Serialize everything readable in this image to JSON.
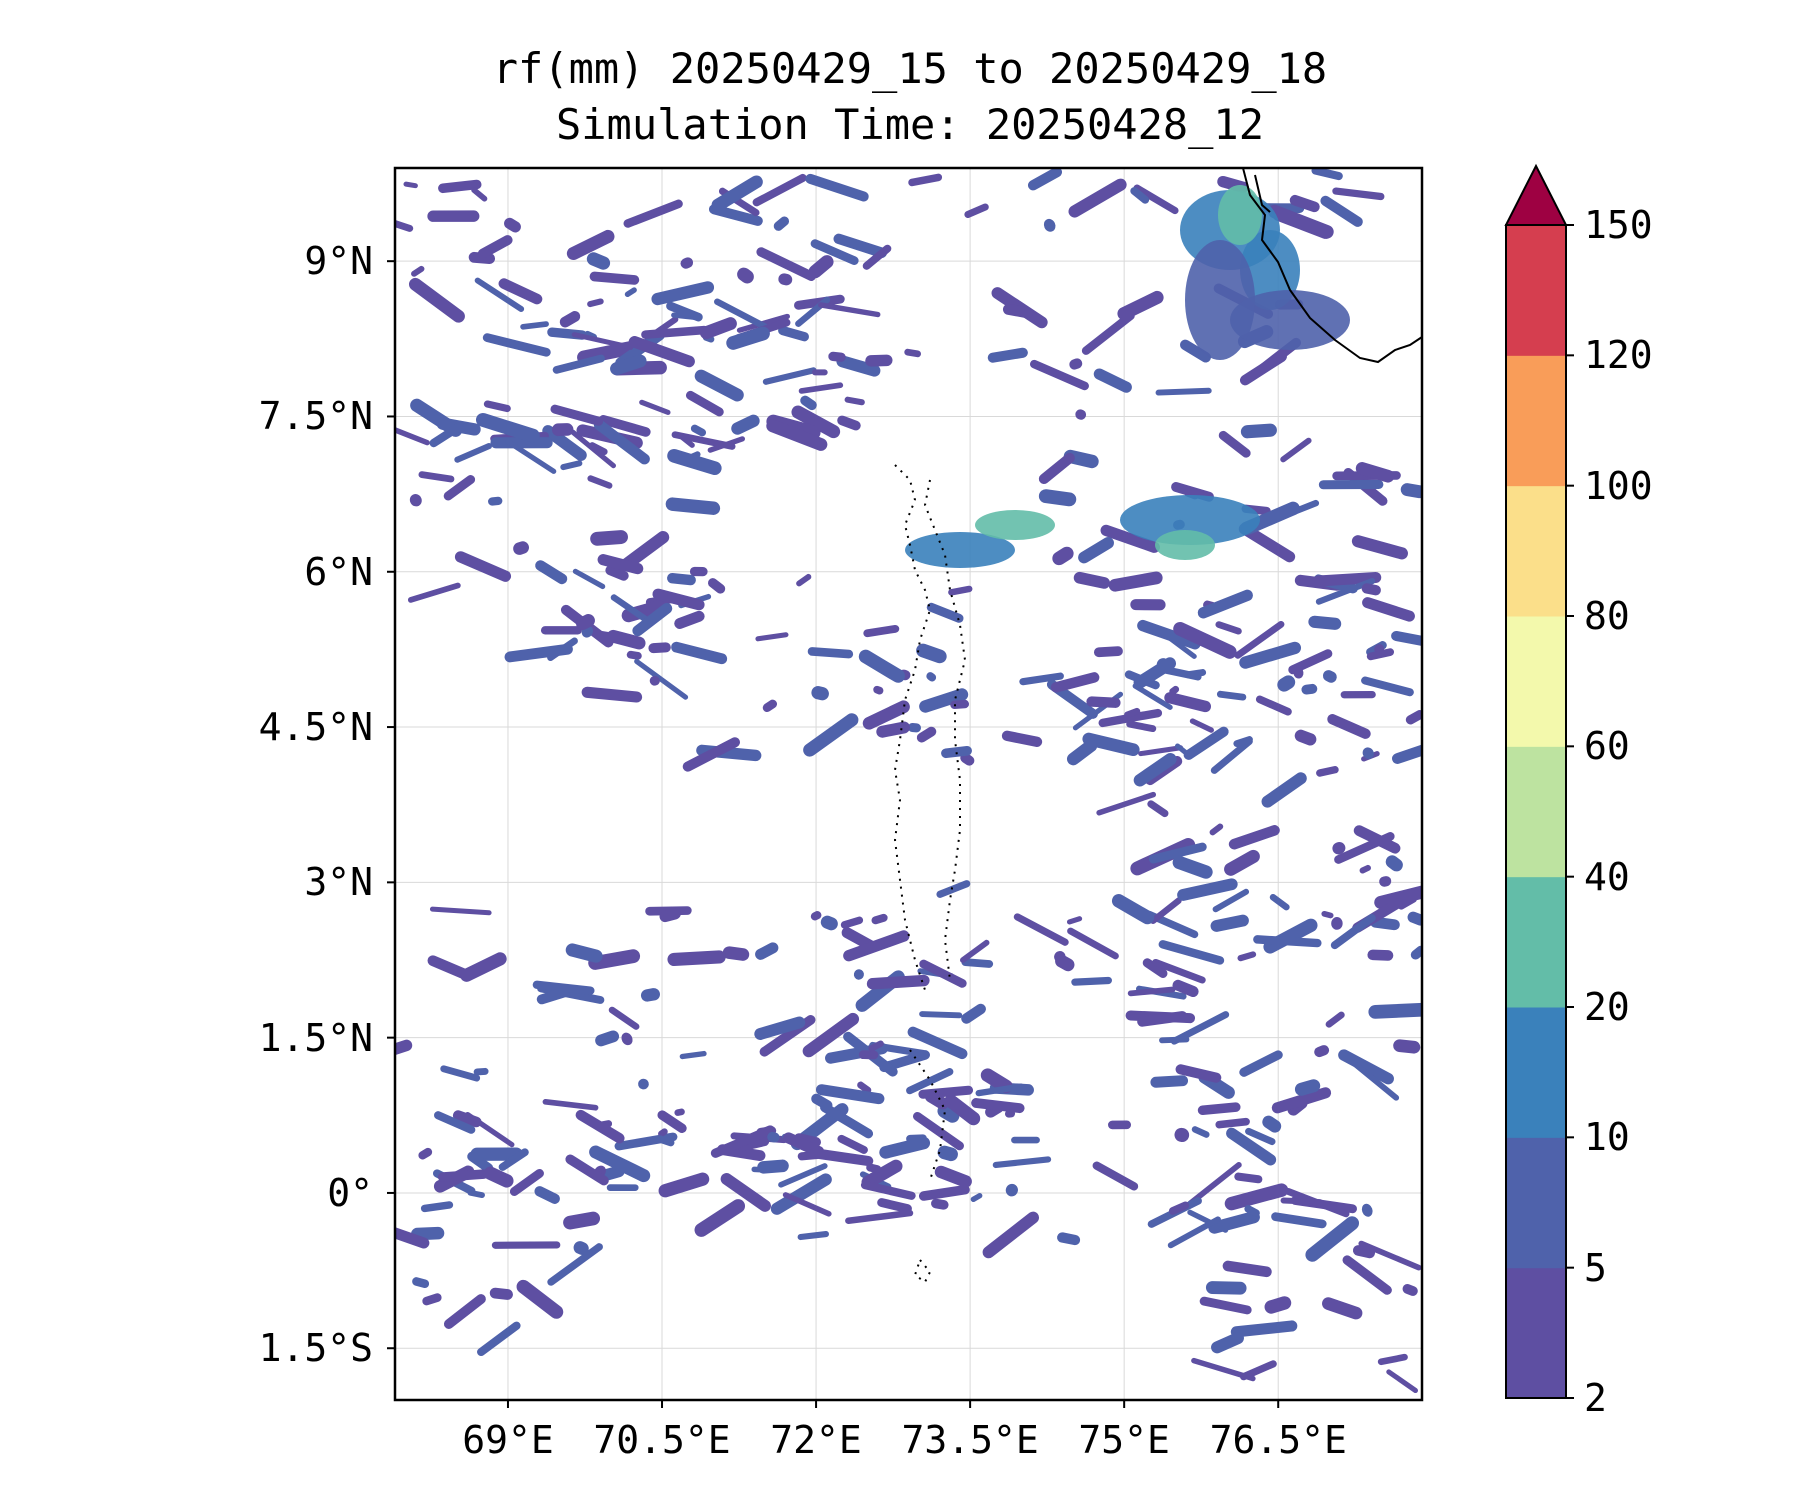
{
  "title": {
    "line1": "rf(mm) 20250429_15 to 20250429_18",
    "line2": "Simulation Time: 20250428_12"
  },
  "map": {
    "lon_range": [
      67.9,
      77.9
    ],
    "lat_range": [
      -2.0,
      9.9
    ],
    "gridlines": true,
    "lat_ticks": [
      {
        "value": 9,
        "label": "9°N"
      },
      {
        "value": 7.5,
        "label": "7.5°N"
      },
      {
        "value": 6,
        "label": "6°N"
      },
      {
        "value": 4.5,
        "label": "4.5°N"
      },
      {
        "value": 3,
        "label": "3°N"
      },
      {
        "value": 1.5,
        "label": "1.5°N"
      },
      {
        "value": 0,
        "label": "0°"
      },
      {
        "value": -1.5,
        "label": "1.5°S"
      }
    ],
    "lon_ticks": [
      {
        "value": 69,
        "label": "69°E"
      },
      {
        "value": 70.5,
        "label": "70.5°E"
      },
      {
        "value": 72,
        "label": "72°E"
      },
      {
        "value": 73.5,
        "label": "73.5°E"
      },
      {
        "value": 75,
        "label": "75°E"
      },
      {
        "value": 76.5,
        "label": "76.5°E"
      }
    ]
  },
  "colorbar": {
    "levels": [
      "2",
      "5",
      "10",
      "20",
      "40",
      "60",
      "80",
      "100",
      "120",
      "150"
    ],
    "colors": [
      "#5e4fa2",
      "#4f62ab",
      "#3a81bb",
      "#63bda8",
      "#bde3a0",
      "#f3f9ac",
      "#fbdf8a",
      "#f99d59",
      "#d53e4f"
    ],
    "extend_color": "#9e0142"
  }
}
